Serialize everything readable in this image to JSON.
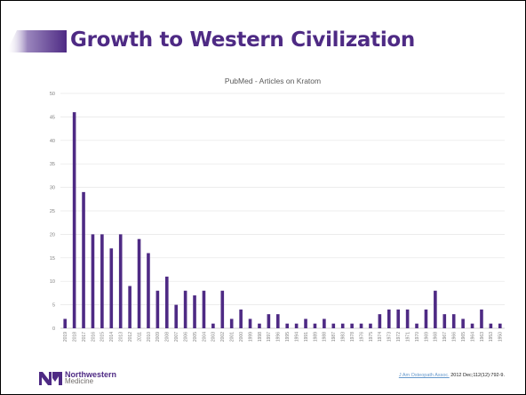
{
  "slide": {
    "title": "Growth to Western Civilization",
    "accent_color": "#4E2A84",
    "title_color": "#4E2A84"
  },
  "footer": {
    "logo_name": "Northwestern",
    "logo_subname": "Medicine",
    "logo_icon": "northwestern-n-icon",
    "citation_link": "J Am Osteopath Assoc.",
    "citation_rest": " 2012 Dec;112(12):792-9."
  },
  "chart_data": {
    "type": "bar",
    "title": "PubMed - Articles on Kratom",
    "xlabel": "",
    "ylabel": "",
    "ylim": [
      0,
      50
    ],
    "yticks": [
      0,
      5,
      10,
      15,
      20,
      25,
      30,
      35,
      40,
      45,
      50
    ],
    "grid": true,
    "bar_color": "#4E2A84",
    "categories": [
      "2019",
      "2018",
      "2017",
      "2016",
      "2015",
      "2014",
      "2013",
      "2012",
      "2011",
      "2010",
      "2009",
      "2008",
      "2007",
      "2006",
      "2005",
      "2004",
      "2003",
      "2002",
      "2001",
      "2000",
      "1999",
      "1998",
      "1997",
      "1996",
      "1995",
      "1994",
      "1991",
      "1989",
      "1988",
      "1987",
      "1983",
      "1978",
      "1976",
      "1975",
      "1974",
      "1973",
      "1972",
      "1971",
      "1970",
      "1969",
      "1968",
      "1967",
      "1966",
      "1965",
      "1964",
      "1963",
      "1953",
      "1950"
    ],
    "values": [
      2,
      46,
      29,
      20,
      20,
      17,
      20,
      9,
      19,
      16,
      8,
      11,
      5,
      8,
      7,
      8,
      1,
      8,
      2,
      4,
      2,
      1,
      3,
      3,
      1,
      1,
      2,
      1,
      2,
      1,
      1,
      1,
      1,
      1,
      3,
      4,
      4,
      4,
      1,
      4,
      8,
      3,
      3,
      2,
      1,
      4,
      1,
      1
    ]
  }
}
